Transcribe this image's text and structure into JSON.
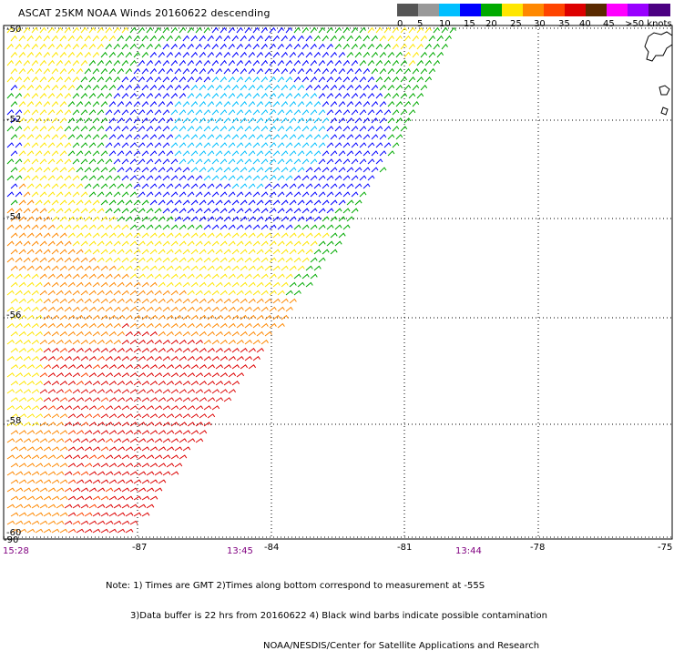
{
  "title": "ASCAT 25KM NOAA Winds 20160622 descending",
  "legend": {
    "colors": [
      "#555555",
      "#999999",
      "#00bfff",
      "#0000ff",
      "#00aa00",
      "#ffe600",
      "#ff8800",
      "#ff4400",
      "#dd0000",
      "#5a2a00",
      "#ff00ff",
      "#9900ff",
      "#4b0082"
    ],
    "labels": [
      "0",
      "5",
      "10",
      "15",
      "20",
      "25",
      "30",
      "35",
      "40",
      "45",
      ">50 knots"
    ]
  },
  "axes": {
    "lon_ticks": [
      "-87",
      "-84",
      "-81",
      "-78",
      "-75"
    ],
    "lat_ticks": [
      "-50",
      "-52",
      "-54",
      "-56",
      "-58",
      "-60"
    ],
    "corner_lon": "-90"
  },
  "times": [
    "15:28",
    "13:45",
    "13:44"
  ],
  "notes": [
    "Note: 1) Times are GMT 2)Times along bottom correspond to measurement at -55S",
    "3)Data buffer is 22 hrs from 20160622 4) Black wind barbs indicate possible contamination",
    "NOAA/NESDIS/Center for Satellite Applications and Research"
  ]
}
